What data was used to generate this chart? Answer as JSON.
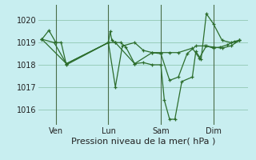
{
  "background_color": "#c8eef0",
  "grid_color": "#99ccbb",
  "line_color": "#2d6e2d",
  "xlabel": "Pression niveau de la mer( hPa )",
  "xlabel_fontsize": 8,
  "ylim": [
    1015.3,
    1020.7
  ],
  "yticks": [
    1016,
    1017,
    1018,
    1019,
    1020
  ],
  "ytick_fontsize": 7,
  "xtick_fontsize": 7,
  "xtick_labels": [
    "Ven",
    "Lun",
    "Sam",
    "Dim"
  ],
  "xtick_positions": [
    1,
    4,
    7,
    10
  ],
  "vline_positions": [
    1,
    4,
    7,
    10
  ],
  "xlim": [
    0,
    12
  ],
  "series1_x": [
    0.2,
    0.6,
    1.0,
    1.3,
    1.6,
    4.0,
    4.1,
    4.2,
    4.4,
    4.7,
    5.0,
    5.5,
    6.0,
    6.5,
    7.0,
    7.2,
    7.5,
    7.8,
    8.2,
    8.8,
    9.0,
    9.3,
    9.6,
    10.0,
    10.5,
    11.0,
    11.5
  ],
  "series1_y": [
    1019.15,
    1019.55,
    1019.0,
    1019.0,
    1018.0,
    1019.0,
    1019.5,
    1019.1,
    1019.0,
    1019.0,
    1018.8,
    1018.05,
    1018.1,
    1018.0,
    1018.0,
    1016.4,
    1015.55,
    1015.55,
    1017.25,
    1017.45,
    1018.6,
    1018.25,
    1020.3,
    1019.85,
    1019.1,
    1019.0,
    1019.1
  ],
  "series2_x": [
    0.2,
    1.6,
    4.0,
    4.4,
    4.8,
    5.5,
    6.0,
    6.5,
    7.0,
    7.5,
    8.0,
    8.5,
    9.0,
    9.5,
    10.0,
    10.5,
    11.0,
    11.5
  ],
  "series2_y": [
    1019.15,
    1018.05,
    1019.0,
    1017.0,
    1018.85,
    1019.0,
    1018.65,
    1018.55,
    1018.5,
    1017.3,
    1017.45,
    1018.5,
    1018.85,
    1018.85,
    1018.8,
    1018.75,
    1018.85,
    1019.1
  ],
  "series3_x": [
    0.2,
    0.9,
    1.6,
    4.0,
    4.4,
    5.5,
    6.5,
    7.0,
    7.5,
    8.0,
    8.8,
    9.2,
    9.6,
    10.0,
    10.4,
    10.8,
    11.2,
    11.5
  ],
  "series3_y": [
    1019.15,
    1019.0,
    1018.05,
    1019.0,
    1019.0,
    1018.05,
    1018.55,
    1018.55,
    1018.55,
    1018.55,
    1018.75,
    1018.3,
    1018.85,
    1018.75,
    1018.8,
    1018.9,
    1019.05,
    1019.1
  ]
}
